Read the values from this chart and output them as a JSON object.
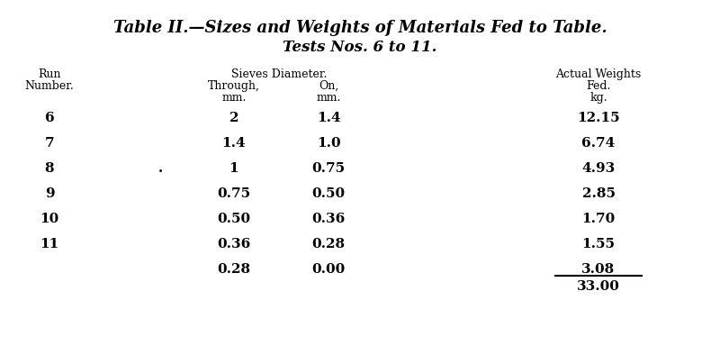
{
  "title_line1": "Table II.—Sizes and Weights of Materials Fed to Table.",
  "title_line2": "Tests Nos. 6 to 11.",
  "col_headers": {
    "run_number": [
      "Run",
      "Number."
    ],
    "sieves_diameter": "Sieves Diameter.",
    "through": [
      "Through,",
      "mm."
    ],
    "on": [
      "On,",
      "mm."
    ],
    "actual_weights": [
      "Actual Weights",
      "Fed.",
      "kg."
    ]
  },
  "rows": [
    {
      "run": "6",
      "through": "2",
      "on": "1.4",
      "weight": "12.15"
    },
    {
      "run": "7",
      "through": "1.4",
      "on": "1.0",
      "weight": "6.74"
    },
    {
      "run": "8",
      "through": "1",
      "on": "0.75",
      "weight": "4.93"
    },
    {
      "run": "9",
      "through": "0.75",
      "on": "0.50",
      "weight": "2.85"
    },
    {
      "run": "10",
      "through": "0.50",
      "on": "0.36",
      "weight": "1.70"
    },
    {
      "run": "11",
      "through": "0.36",
      "on": "0.28",
      "weight": "1.55"
    },
    {
      "run": "",
      "through": "0.28",
      "on": "0.00",
      "weight": "3.08"
    }
  ],
  "total": "33.00",
  "dot_row": 2,
  "bg_color": "#ffffff",
  "text_color": "#000000",
  "font_size_title": 13,
  "font_size_subtitle": 12,
  "font_size_header": 9,
  "font_size_data": 11
}
